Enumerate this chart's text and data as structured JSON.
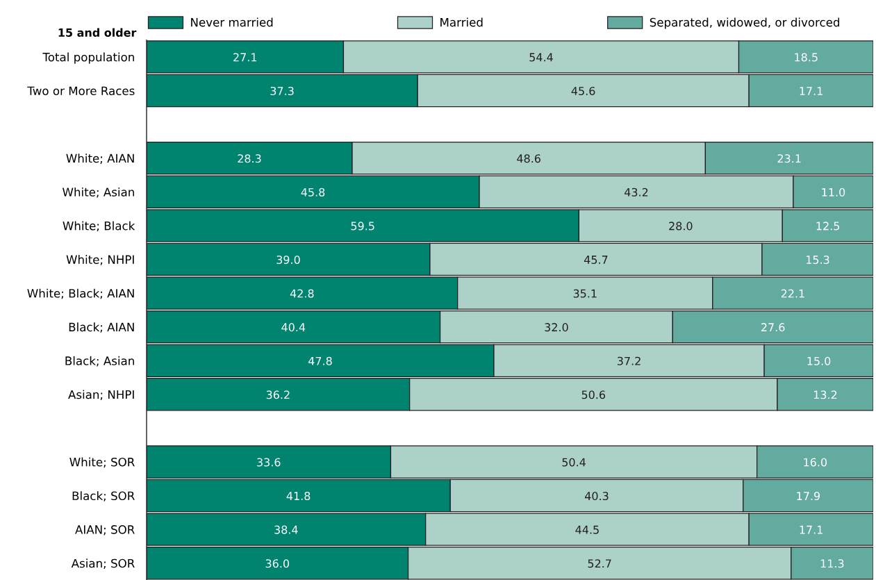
{
  "chart_data": {
    "type": "bar",
    "orientation": "horizontal",
    "stacked": true,
    "ylabel": "15 and older",
    "categories": [
      "Total population",
      "Two or More Races",
      null,
      "White; AIAN",
      "White; Asian",
      "White; Black",
      "White; NHPI",
      "White; Black; AIAN",
      "Black; AIAN",
      "Black; Asian",
      "Asian; NHPI",
      null,
      "White; SOR",
      "Black; SOR",
      "AIAN; SOR",
      "Asian; SOR"
    ],
    "series": [
      {
        "name": "Never married",
        "color": "#00836f",
        "values": [
          27.1,
          37.3,
          null,
          28.3,
          45.8,
          59.5,
          39.0,
          42.8,
          40.4,
          47.8,
          36.2,
          null,
          33.6,
          41.8,
          38.4,
          36.0
        ],
        "value_labels": [
          "27.1",
          "37.3",
          null,
          "28.3",
          "45.8",
          "59.5",
          "39.0",
          "42.8",
          "40.4",
          "47.8",
          "36.2",
          null,
          "33.6",
          "41.8",
          "38.4",
          "36.0"
        ]
      },
      {
        "name": "Married",
        "color": "#acd1c9",
        "values": [
          54.4,
          45.6,
          null,
          48.6,
          43.2,
          28.0,
          45.7,
          35.1,
          32.0,
          37.2,
          50.6,
          null,
          50.4,
          40.3,
          44.5,
          52.7
        ],
        "value_labels": [
          "54.4",
          "45.6",
          null,
          "48.6",
          "43.2",
          "28.0",
          "45.7",
          "35.1",
          "32.0",
          "37.2",
          "50.6",
          null,
          "50.4",
          "40.3",
          "44.5",
          "52.7"
        ]
      },
      {
        "name": "Separated, widowed, or divorced",
        "color": "#63ab9f",
        "values": [
          18.5,
          17.1,
          null,
          23.1,
          11.0,
          12.5,
          15.3,
          22.1,
          27.6,
          15.0,
          13.2,
          null,
          16.0,
          17.9,
          17.1,
          11.3
        ],
        "value_labels": [
          "18.5",
          "17.1",
          null,
          "23.1",
          "11.0",
          "12.5",
          "15.3",
          "22.1",
          "27.6",
          "15.0",
          "13.2",
          null,
          "16.0",
          "17.9",
          "17.1",
          "11.3"
        ]
      }
    ],
    "xlim": [
      0,
      100
    ],
    "tick_labels": "y",
    "grid": false,
    "legend": "top"
  }
}
